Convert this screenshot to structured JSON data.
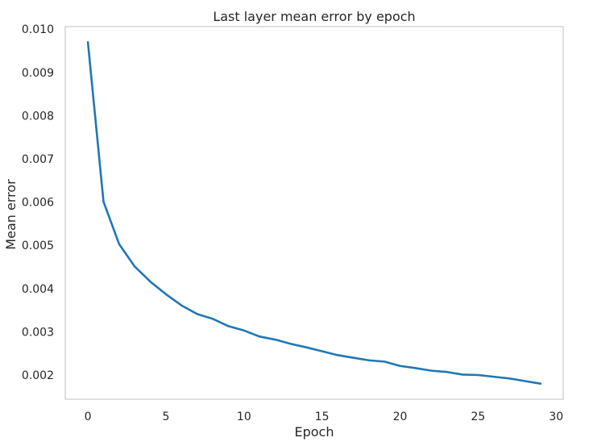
{
  "chart_data": {
    "type": "line",
    "title": "Last layer mean error by epoch",
    "xlabel": "Epoch",
    "ylabel": "Mean error",
    "xlim": [
      -1.45,
      30.45
    ],
    "ylim": [
      0.00144,
      0.01006
    ],
    "xticks": [
      0,
      5,
      10,
      15,
      20,
      25,
      30
    ],
    "xtick_labels": [
      "0",
      "5",
      "10",
      "15",
      "20",
      "25",
      "30"
    ],
    "yticks": [
      0.002,
      0.003,
      0.004,
      0.005,
      0.006,
      0.007,
      0.008,
      0.009,
      0.01
    ],
    "ytick_labels": [
      "0.002",
      "0.003",
      "0.004",
      "0.005",
      "0.006",
      "0.007",
      "0.008",
      "0.009",
      "0.010"
    ],
    "grid": false,
    "legend": "none",
    "series": [
      {
        "color": "#1f77b4",
        "x": [
          0,
          1,
          2,
          3,
          4,
          5,
          6,
          7,
          8,
          9,
          10,
          11,
          12,
          13,
          14,
          15,
          16,
          17,
          18,
          19,
          20,
          21,
          22,
          23,
          24,
          25,
          26,
          27,
          28,
          29
        ],
        "y": [
          0.0097,
          0.00601,
          0.00503,
          0.00451,
          0.00416,
          0.00387,
          0.00361,
          0.00341,
          0.0033,
          0.00313,
          0.00303,
          0.00289,
          0.00282,
          0.00272,
          0.00264,
          0.00255,
          0.00246,
          0.0024,
          0.00234,
          0.00231,
          0.00221,
          0.00216,
          0.0021,
          0.00207,
          0.00201,
          0.002,
          0.00196,
          0.00192,
          0.00186,
          0.0018
        ]
      }
    ]
  }
}
